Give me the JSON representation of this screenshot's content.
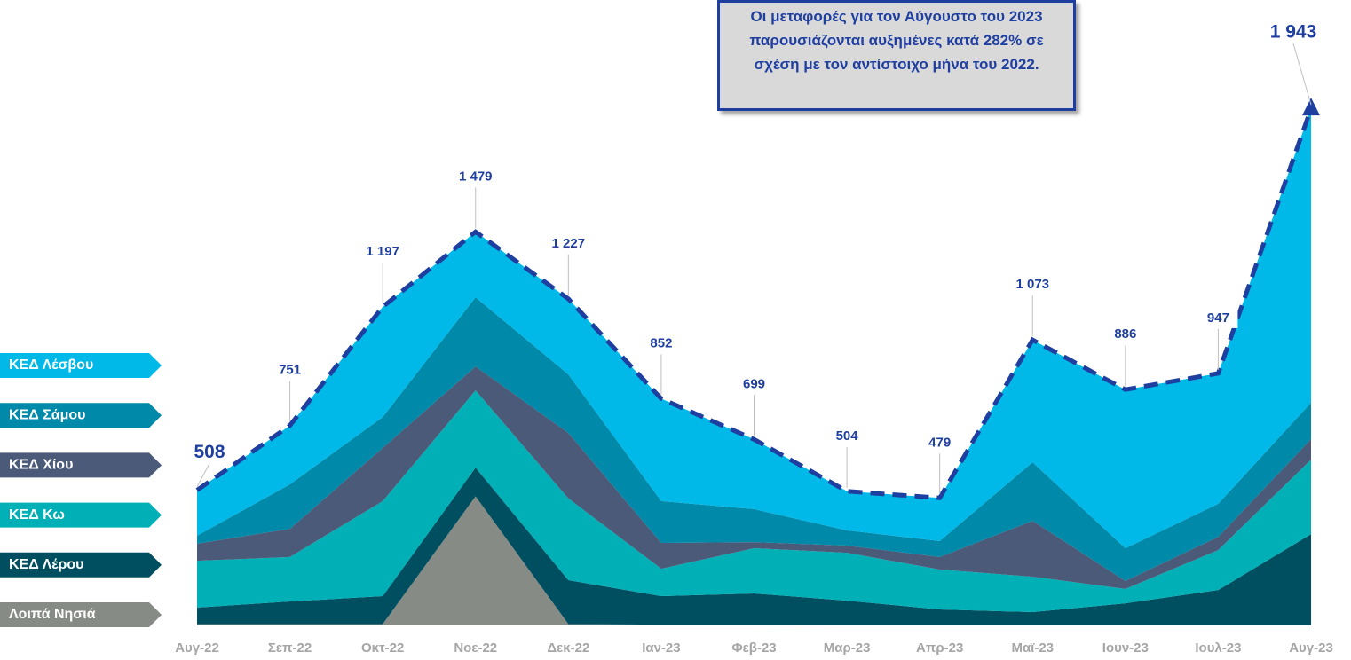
{
  "chart_data": {
    "type": "stacked_area",
    "categories": [
      "Αυγ-22",
      "Σεπ-22",
      "Οκτ-22",
      "Νοε-22",
      "Δεκ-22",
      "Ιαν-23",
      "Φεβ-23",
      "Μαρ-23",
      "Απρ-23",
      "Μαϊ-23",
      "Ιουν-23",
      "Ιουλ-23",
      "Αυγ-23"
    ],
    "series": [
      {
        "name": "ΚΕΔ Λέσβου",
        "color": "#00b9e8",
        "values": [
          171,
          221,
          414,
          246,
          284,
          385,
          262,
          147,
          162,
          460,
          596,
          490,
          1106
        ]
      },
      {
        "name": "ΚΕΔ Σάμου",
        "color": "#0089a8",
        "values": [
          30,
          167,
          116,
          260,
          220,
          157,
          124,
          57,
          60,
          220,
          123,
          124,
          137
        ]
      },
      {
        "name": "ΚΕΔ Χίου",
        "color": "#4a5a78",
        "values": [
          64,
          106,
          200,
          90,
          246,
          97,
          23,
          27,
          47,
          210,
          30,
          50,
          77
        ]
      },
      {
        "name": "ΚΕΔ Κω",
        "color": "#00b0b6",
        "values": [
          176,
          167,
          357,
          290,
          307,
          103,
          170,
          180,
          150,
          133,
          54,
          150,
          280
        ]
      },
      {
        "name": "ΚΕΔ Λέρου",
        "color": "#004f60",
        "values": [
          62,
          85,
          105,
          108,
          165,
          107,
          117,
          91,
          58,
          48,
          81,
          131,
          341
        ]
      },
      {
        "name": "Λοιπά Νησιά",
        "color": "#878b85",
        "values": [
          5,
          5,
          5,
          485,
          5,
          3,
          3,
          2,
          2,
          2,
          2,
          2,
          2
        ]
      }
    ],
    "totals": [
      508,
      751,
      1197,
      1479,
      1227,
      852,
      699,
      504,
      479,
      1073,
      886,
      947,
      1943
    ],
    "value_labels": [
      "508",
      "751",
      "1 197",
      "1 479",
      "1 227",
      "852",
      "699",
      "504",
      "479",
      "1 073",
      "886",
      "947",
      "1 943"
    ],
    "total_line_color": "#1f3fa0",
    "annotation": "Οι μεταφορές για τον Αύγουστο του 2023 παρουσιάζονται αυξημένες κατά 282% σε σχέση με τον αντίστοιχο μήνα του 2022.",
    "ylim": [
      0,
      2000
    ]
  }
}
